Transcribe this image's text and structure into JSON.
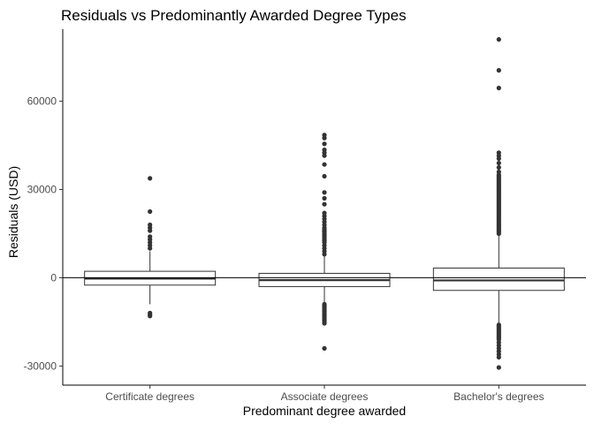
{
  "chart_data": {
    "type": "box",
    "title": "Residuals vs Predominantly Awarded Degree Types",
    "xlabel": "Predominant degree awarded",
    "ylabel": "Residuals (USD)",
    "ylim": [
      -36500,
      84500
    ],
    "yticks": [
      -30000,
      0,
      30000,
      60000
    ],
    "ytick_labels": [
      "-30000",
      "0",
      "30000",
      "60000"
    ],
    "reference_line_y": 0,
    "grid": false,
    "legend": "none",
    "categories": [
      "Certificate degrees",
      "Associate degrees",
      "Bachelor's degrees"
    ],
    "boxes": [
      {
        "category": "Certificate degrees",
        "q1": -2500,
        "median": -300,
        "q3": 2200,
        "whisker_low": -9000,
        "whisker_high": 9000,
        "outliers": [
          33800,
          22500,
          18000,
          17000,
          16000,
          14000,
          13000,
          12000,
          11000,
          10000,
          -12000,
          -12500,
          -13000
        ]
      },
      {
        "category": "Associate degrees",
        "q1": -3000,
        "median": -800,
        "q3": 1500,
        "whisker_low": -8500,
        "whisker_high": 7500,
        "outliers": [
          48500,
          47500,
          45500,
          43500,
          42500,
          41500,
          38500,
          34500,
          29000,
          27000,
          25000,
          22000,
          21000,
          20000,
          19000,
          18000,
          17000,
          16500,
          16000,
          15500,
          15000,
          14500,
          14000,
          13500,
          13000,
          12500,
          12000,
          11000,
          10000,
          9000,
          8000,
          -9000,
          -9500,
          -10000,
          -10500,
          -11000,
          -11500,
          -12000,
          -12500,
          -13000,
          -13500,
          -14000,
          -14500,
          -15000,
          -15500,
          -24000
        ]
      },
      {
        "category": "Bachelor's degrees",
        "q1": -4300,
        "median": -900,
        "q3": 3300,
        "whisker_low": -15500,
        "whisker_high": 14800,
        "outliers": [
          81000,
          70500,
          64500,
          42500,
          41500,
          40500,
          39000,
          37500,
          36000,
          35000,
          34500,
          34000,
          33500,
          33000,
          32500,
          32000,
          31500,
          31000,
          30500,
          30000,
          29500,
          29000,
          28500,
          28000,
          27500,
          27000,
          26500,
          26000,
          25500,
          25000,
          24500,
          24000,
          23500,
          23000,
          22500,
          22000,
          21500,
          21000,
          20500,
          20000,
          19500,
          19000,
          18500,
          18000,
          17500,
          17000,
          16500,
          16000,
          15500,
          15000,
          -16000,
          -16500,
          -17000,
          -17500,
          -18000,
          -18500,
          -19000,
          -19500,
          -20000,
          -20500,
          -21000,
          -22000,
          -23000,
          -24000,
          -25000,
          -26000,
          -27000,
          -30500
        ]
      }
    ],
    "colors": {
      "box_fill": "#ffffff",
      "box_stroke": "#333333",
      "point": "#333333",
      "line": "#000000"
    }
  }
}
